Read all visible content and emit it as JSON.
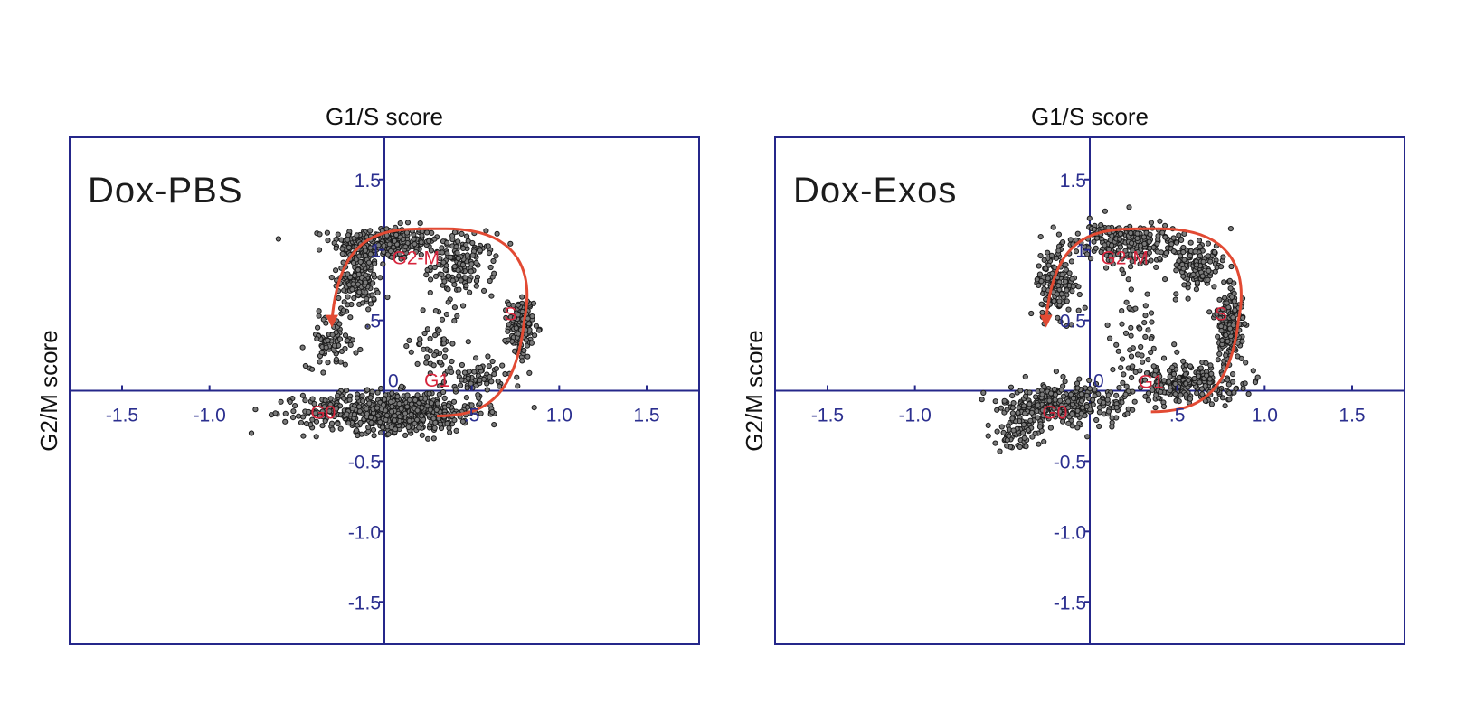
{
  "colors": {
    "axis": "#25278a",
    "tick_text": "#2b2f8f",
    "point_fill": "#7a7a7a",
    "point_stroke": "#1a1a1a",
    "trajectory": "#e24a33",
    "phase_label": "#d7263d"
  },
  "chart_data": [
    {
      "type": "scatter",
      "title": "Dox-PBS",
      "xlabel": "G1/S score",
      "ylabel": "G2/M score",
      "xlim": [
        -1.8,
        1.8
      ],
      "ylim": [
        -1.8,
        1.8
      ],
      "xticks": [
        -1.5,
        -1.0,
        0.5,
        1.0,
        1.5
      ],
      "xtick_labels": [
        "-1.5",
        "-1.0",
        ".5",
        "1.0",
        "1.5"
      ],
      "yticks": [
        1.5,
        1.0,
        0.5,
        -0.5,
        -1.0,
        -1.5
      ],
      "ytick_labels": [
        "1.5",
        "1",
        ".5",
        "-0.5",
        "-1.0",
        "-1.5"
      ],
      "origin_label": "0",
      "grid": false,
      "cloud": {
        "description_free": true,
        "segments": [
          {
            "cx": 0.0,
            "cy": 1.05,
            "rx": 0.25,
            "ry": 0.1,
            "n": 260
          },
          {
            "cx": -0.15,
            "cy": 0.8,
            "rx": 0.1,
            "ry": 0.2,
            "n": 160
          },
          {
            "cx": 0.45,
            "cy": 0.9,
            "rx": 0.15,
            "ry": 0.18,
            "n": 150
          },
          {
            "cx": 0.78,
            "cy": 0.45,
            "rx": 0.06,
            "ry": 0.18,
            "n": 140
          },
          {
            "cx": -0.3,
            "cy": 0.35,
            "rx": 0.12,
            "ry": 0.15,
            "n": 80
          },
          {
            "cx": 0.05,
            "cy": -0.15,
            "rx": 0.42,
            "ry": 0.12,
            "n": 650
          },
          {
            "cx": 0.3,
            "cy": 0.3,
            "rx": 0.12,
            "ry": 0.3,
            "n": 60
          },
          {
            "cx": 0.55,
            "cy": 0.1,
            "rx": 0.12,
            "ry": 0.1,
            "n": 60
          }
        ]
      },
      "trajectory": {
        "start": [
          -0.3,
          0.5
        ],
        "top": [
          0.35,
          1.15
        ],
        "right": [
          0.8,
          0.5
        ],
        "end": [
          0.3,
          -0.18
        ]
      },
      "phase_labels": [
        {
          "text": "G2-M",
          "x": 0.18,
          "y": 0.9
        },
        {
          "text": "S",
          "x": 0.72,
          "y": 0.5
        },
        {
          "text": "G1",
          "x": 0.3,
          "y": 0.03
        },
        {
          "text": "G0",
          "x": -0.35,
          "y": -0.2
        }
      ]
    },
    {
      "type": "scatter",
      "title": "Dox-Exos",
      "xlabel": "G1/S score",
      "ylabel": "G2/M score",
      "xlim": [
        -1.8,
        1.8
      ],
      "ylim": [
        -1.8,
        1.8
      ],
      "xticks": [
        -1.5,
        -1.0,
        0.5,
        1.0,
        1.5
      ],
      "xtick_labels": [
        "-1.5",
        "-1.0",
        ".5",
        "1.0",
        "1.5"
      ],
      "yticks": [
        1.5,
        1.0,
        0.5,
        -0.5,
        -1.0,
        -1.5
      ],
      "ytick_labels": [
        "1.5",
        "1",
        "0.5",
        "-0.5",
        "-1.0",
        "-1.5"
      ],
      "origin_label": "0",
      "grid": false,
      "cloud": {
        "description_free": true,
        "segments": [
          {
            "cx": 0.2,
            "cy": 1.05,
            "rx": 0.25,
            "ry": 0.12,
            "n": 230
          },
          {
            "cx": -0.2,
            "cy": 0.75,
            "rx": 0.1,
            "ry": 0.22,
            "n": 150
          },
          {
            "cx": 0.6,
            "cy": 0.9,
            "rx": 0.15,
            "ry": 0.15,
            "n": 140
          },
          {
            "cx": 0.8,
            "cy": 0.45,
            "rx": 0.07,
            "ry": 0.22,
            "n": 190
          },
          {
            "cx": 0.55,
            "cy": 0.05,
            "rx": 0.25,
            "ry": 0.12,
            "n": 250
          },
          {
            "cx": -0.15,
            "cy": -0.1,
            "rx": 0.3,
            "ry": 0.12,
            "n": 320
          },
          {
            "cx": -0.4,
            "cy": -0.3,
            "rx": 0.12,
            "ry": 0.1,
            "n": 60
          },
          {
            "cx": 0.3,
            "cy": 0.35,
            "rx": 0.15,
            "ry": 0.3,
            "n": 50
          }
        ]
      },
      "trajectory": {
        "start": [
          -0.25,
          0.5
        ],
        "top": [
          0.4,
          1.15
        ],
        "right": [
          0.85,
          0.5
        ],
        "end": [
          0.35,
          -0.15
        ]
      },
      "phase_labels": [
        {
          "text": "G2-M",
          "x": 0.2,
          "y": 0.9
        },
        {
          "text": "S",
          "x": 0.75,
          "y": 0.5
        },
        {
          "text": "G1",
          "x": 0.35,
          "y": 0.02
        },
        {
          "text": "G0",
          "x": -0.2,
          "y": -0.2
        }
      ]
    }
  ]
}
